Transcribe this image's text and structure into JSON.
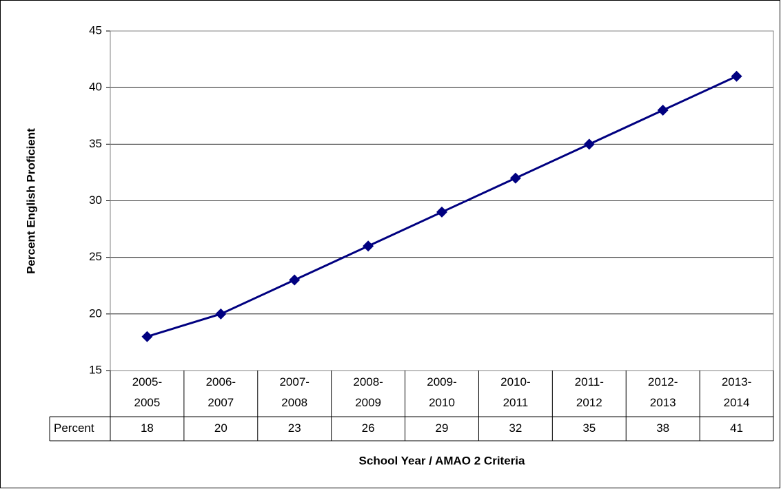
{
  "chart_data": {
    "type": "line",
    "y_label": "Percent English Proficient",
    "x_label": "School Year / AMAO 2 Criteria",
    "categories": [
      "2005-2005",
      "2006-2007",
      "2007-2008",
      "2008-2009",
      "2009-2010",
      "2010-2011",
      "2011-2012",
      "2012-2013",
      "2013-2014"
    ],
    "series": [
      {
        "name": "Percent",
        "color": "#000080",
        "values": [
          18,
          20,
          23,
          26,
          29,
          32,
          35,
          38,
          41
        ]
      }
    ],
    "ylim": [
      15,
      45
    ],
    "yticks": [
      15,
      20,
      25,
      30,
      35,
      40,
      45
    ],
    "grid": true,
    "data_table": true
  }
}
